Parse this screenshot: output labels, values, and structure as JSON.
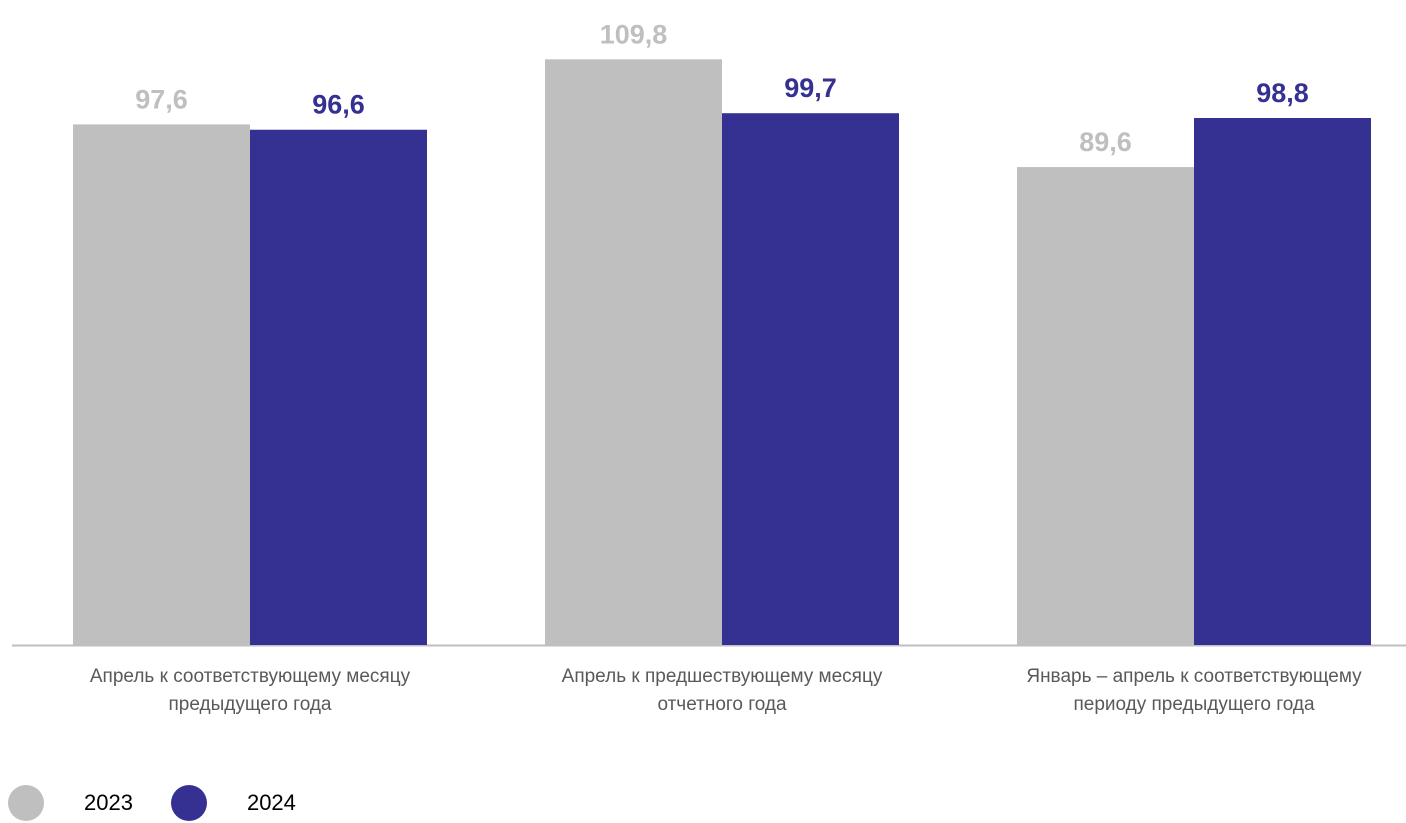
{
  "chart_data": {
    "type": "bar",
    "categories": [
      [
        "Апрель к соответствующему месяцу",
        "предыдущего года"
      ],
      [
        "Апрель к предшествующему месяцу",
        "отчетного года"
      ],
      [
        "Январь – апрель к соответствующему",
        "периоду предыдущего года"
      ]
    ],
    "series": [
      {
        "name": "2023",
        "color": "#bfbfbf",
        "values": [
          97.6,
          109.8,
          89.6
        ],
        "labels": [
          "97,6",
          "109,8",
          "89,6"
        ]
      },
      {
        "name": "2024",
        "color": "#353192",
        "values": [
          96.6,
          99.7,
          98.8
        ],
        "labels": [
          "96,6",
          "99,7",
          "98,8"
        ]
      }
    ],
    "ylim": [
      0,
      110.8
    ],
    "grid": false,
    "legend_position": "bottom-left",
    "axis_color": "#bfbfbf",
    "value_label_colors": {
      "2023": "#bfbfbf",
      "2024": "#353192"
    }
  },
  "legend": {
    "items": [
      {
        "label": "2023",
        "color": "#bfbfbf"
      },
      {
        "label": "2024",
        "color": "#353192"
      }
    ]
  }
}
